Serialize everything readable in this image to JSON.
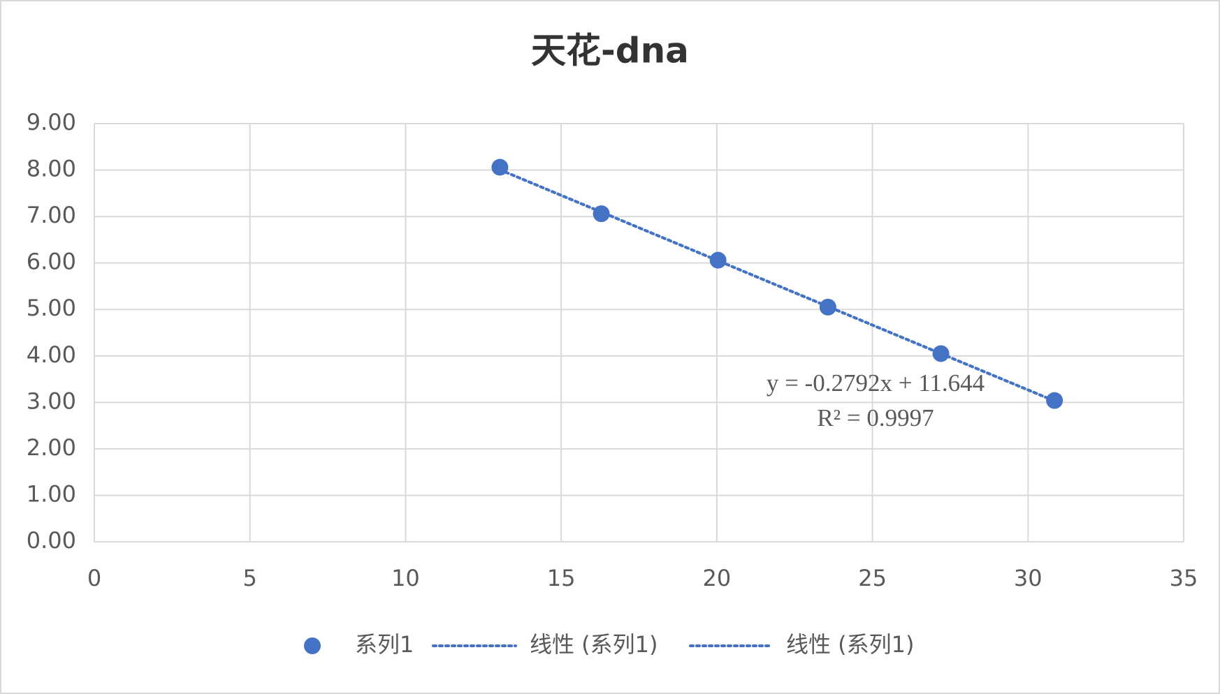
{
  "chart_data": {
    "type": "scatter",
    "title": "天花-dna",
    "series": [
      {
        "name": "系列1",
        "color": "#4472c4",
        "x": [
          13.03,
          16.29,
          20.04,
          23.57,
          27.2,
          30.85
        ],
        "values": [
          8.06,
          7.06,
          6.06,
          5.05,
          4.05,
          3.04
        ]
      }
    ],
    "trendlines": [
      {
        "name": "线性 (系列1)",
        "slope": -0.2792,
        "intercept": 11.644,
        "style": "dotted"
      },
      {
        "name": "线性 (系列1)",
        "slope": -0.2792,
        "intercept": 11.644,
        "style": "dotted"
      }
    ],
    "equation": "y = -0.2792x + 11.644",
    "r_squared_label": "R² = 0.9997",
    "xlim": [
      0,
      35
    ],
    "xticks": [
      0,
      5,
      10,
      15,
      20,
      25,
      30,
      35
    ],
    "ylim": [
      0,
      9
    ],
    "yticks": [
      {
        "value": 0,
        "label": "0.00"
      },
      {
        "value": 1,
        "label": "1.00"
      },
      {
        "value": 2,
        "label": "2.00"
      },
      {
        "value": 3,
        "label": "3.00"
      },
      {
        "value": 4,
        "label": "4.00"
      },
      {
        "value": 5,
        "label": "5.00"
      },
      {
        "value": 6,
        "label": "6.00"
      },
      {
        "value": 7,
        "label": "7.00"
      },
      {
        "value": 8,
        "label": "8.00"
      },
      {
        "value": 9,
        "label": "9.00"
      }
    ],
    "grid": true,
    "legend": "bottom"
  }
}
